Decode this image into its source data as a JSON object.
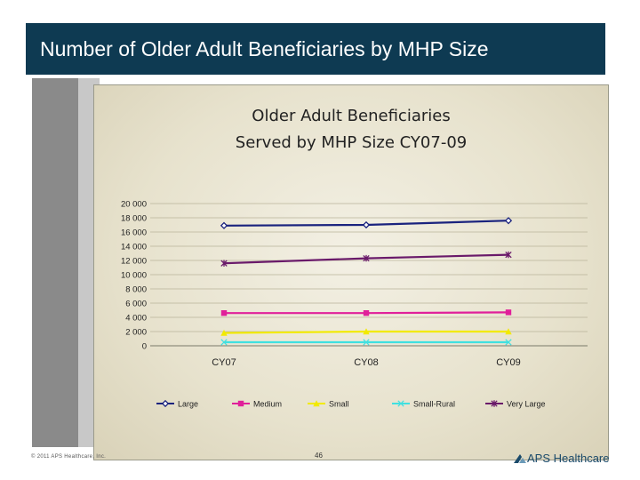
{
  "header": {
    "title": "Number of Older Adult Beneficiaries by MHP Size"
  },
  "chart_data": {
    "type": "line",
    "title_line1": "Older Adult Beneficiaries",
    "title_line2": "Served by MHP Size CY07-09",
    "categories": [
      "CY07",
      "CY08",
      "CY09"
    ],
    "yticks": [
      "20 000",
      "18 000",
      "16 000",
      "14 000",
      "12 000",
      "10 000",
      "8 000",
      "6 000",
      "4 000",
      "2 000",
      "0"
    ],
    "ylim": [
      0,
      20000
    ],
    "series": [
      {
        "name": "Large",
        "values": [
          16900,
          17000,
          17600
        ],
        "color": "#1a237e",
        "marker": "diamond"
      },
      {
        "name": "Medium",
        "values": [
          4600,
          4600,
          4700
        ],
        "color": "#e0209a",
        "marker": "square"
      },
      {
        "name": "Small",
        "values": [
          1800,
          2000,
          2000
        ],
        "color": "#f2ea00",
        "marker": "triangle"
      },
      {
        "name": "Small-Rural",
        "values": [
          500,
          500,
          500
        ],
        "color": "#40e0e0",
        "marker": "x"
      },
      {
        "name": "Very Large",
        "values": [
          11600,
          12300,
          12800
        ],
        "color": "#6a1a6a",
        "marker": "star"
      }
    ]
  },
  "footer": {
    "copyright": "© 2011 APS Healthcare, Inc.",
    "page_number": "46",
    "logo_text": "APS Healthcare"
  }
}
